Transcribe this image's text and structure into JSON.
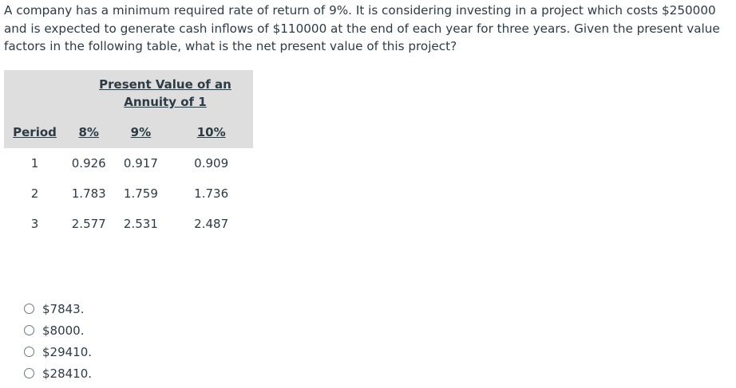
{
  "question": {
    "text": "A company has a minimum required rate of return of 9%. It is considering investing in a project which costs $250000 and is expected to generate cash inflows of $110000 at the end of each year for three years. Given the present value factors in the following table, what is the net present value of this project?"
  },
  "table": {
    "title": "Present Value of an Annuity of 1",
    "columns": [
      "Period",
      "8%",
      "9%",
      "10%"
    ],
    "rows": [
      [
        "1",
        "0.926",
        "0.917",
        "0.909"
      ],
      [
        "2",
        "1.783",
        "1.759",
        "1.736"
      ],
      [
        "3",
        "2.577",
        "2.531",
        "2.487"
      ]
    ]
  },
  "options": [
    {
      "label": "$7843."
    },
    {
      "label": "$8000."
    },
    {
      "label": "$29410."
    },
    {
      "label": "$28410."
    }
  ],
  "colors": {
    "text": "#2d3b45",
    "table_header_bg": "#dedede",
    "radio_border": "#6b7780"
  }
}
